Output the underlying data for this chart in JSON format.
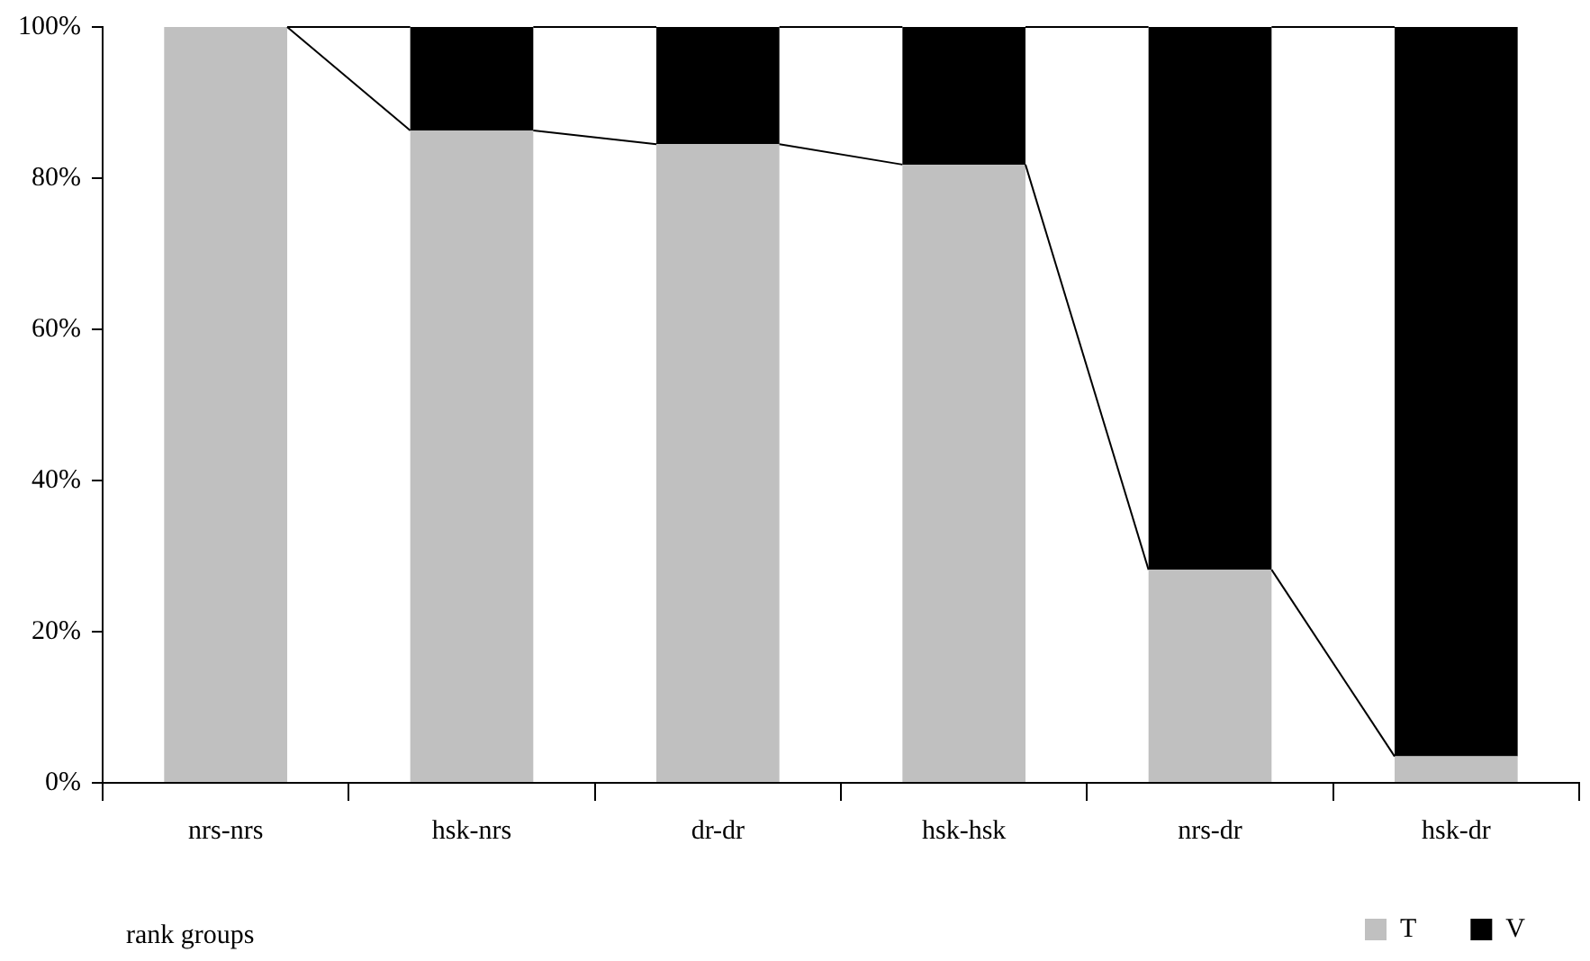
{
  "chart_data": {
    "type": "bar",
    "stacked": true,
    "xlabel": "rank groups",
    "categories": [
      "nrs-nrs",
      "hsk-nrs",
      "dr-dr",
      "hsk-hsk",
      "nrs-dr",
      "hsk-dr"
    ],
    "series": [
      {
        "name": "T",
        "color": "#c0c0c0",
        "values": [
          100,
          86.3,
          84.5,
          81.8,
          28.2,
          3.5
        ]
      },
      {
        "name": "V",
        "color": "#000000",
        "values": [
          0,
          13.7,
          15.5,
          18.2,
          71.8,
          96.5
        ]
      }
    ],
    "ylim": [
      0,
      100
    ],
    "yticks": [
      {
        "value": 0,
        "label": "0%"
      },
      {
        "value": 20,
        "label": "20%"
      },
      {
        "value": 40,
        "label": "40%"
      },
      {
        "value": 60,
        "label": "60%"
      },
      {
        "value": 80,
        "label": "80%"
      },
      {
        "value": 100,
        "label": "100%"
      }
    ],
    "grid": false,
    "legend": "bottom right"
  }
}
